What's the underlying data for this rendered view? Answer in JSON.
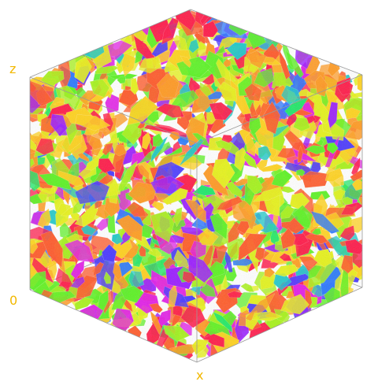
{
  "axis_labels": {
    "z": "z",
    "origin": "0",
    "x": "x"
  },
  "colors": {
    "background": "#ffffff",
    "axis_label": "#f2b800",
    "cube_edge": "#9a9a9a",
    "surface_palette": [
      "#ff1a4a",
      "#ff5a2a",
      "#ff9a22",
      "#ffd21e",
      "#e6f21c",
      "#a8f21c",
      "#5cf224",
      "#1ee86a",
      "#1ec8c8",
      "#2a78ff",
      "#4a3aff",
      "#9a1eff",
      "#e21ee6"
    ]
  },
  "scene": {
    "type": "3d-isosurface-volume",
    "view": "isometric-cube"
  }
}
